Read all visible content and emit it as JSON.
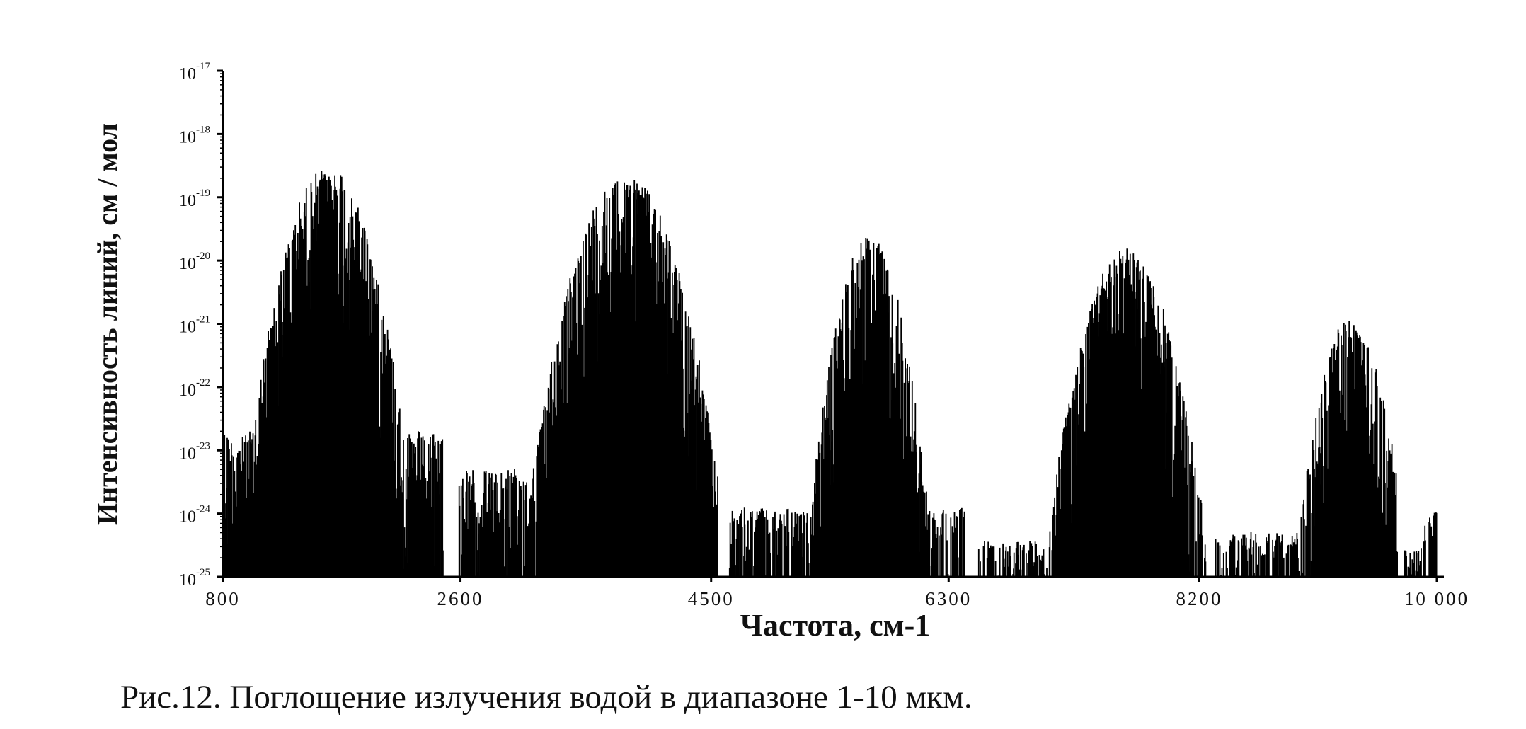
{
  "chart_data": {
    "type": "bar",
    "ylabel": "Интенсивность линий,  см / мол",
    "xlabel": "Частота, см-1",
    "x_ticks": [
      "800",
      "2600",
      "4500",
      "6300",
      "8200",
      "10 000"
    ],
    "x_tick_values": [
      800,
      2600,
      4500,
      6300,
      8200,
      10000
    ],
    "xlim": [
      800,
      10000
    ],
    "y_scale": "log",
    "y_tick_exponents": [
      -17,
      -18,
      -19,
      -20,
      -21,
      -22,
      -23,
      -24,
      -25
    ],
    "ylim_exponents": [
      -25,
      -17
    ],
    "grid": false,
    "legend": "none",
    "color": "#000000",
    "series": [
      {
        "center": 1600,
        "peak_exponent": -18.6,
        "half_width": 430,
        "start": 800,
        "end": 2470,
        "base_exponent": -22.8
      },
      {
        "center": 3850,
        "peak_exponent": -18.7,
        "half_width": 520,
        "start": 2590,
        "end": 4550,
        "base_exponent": -23.4
      },
      {
        "center": 5700,
        "peak_exponent": -19.7,
        "half_width": 330,
        "start": 4640,
        "end": 6420,
        "base_exponent": -24.0
      },
      {
        "center": 7650,
        "peak_exponent": -19.9,
        "half_width": 450,
        "start": 6520,
        "end": 8250,
        "base_exponent": -24.5
      },
      {
        "center": 9350,
        "peak_exponent": -21.0,
        "half_width": 300,
        "start": 8320,
        "end": 9700,
        "base_exponent": -24.4
      },
      {
        "center": 10000,
        "peak_exponent": -24.0,
        "half_width": 100,
        "start": 9750,
        "end": 10000,
        "base_exponent": -24.6
      }
    ]
  },
  "caption": "Рис.12. Поглощение излучения водой в диапазоне 1-10 мкм."
}
